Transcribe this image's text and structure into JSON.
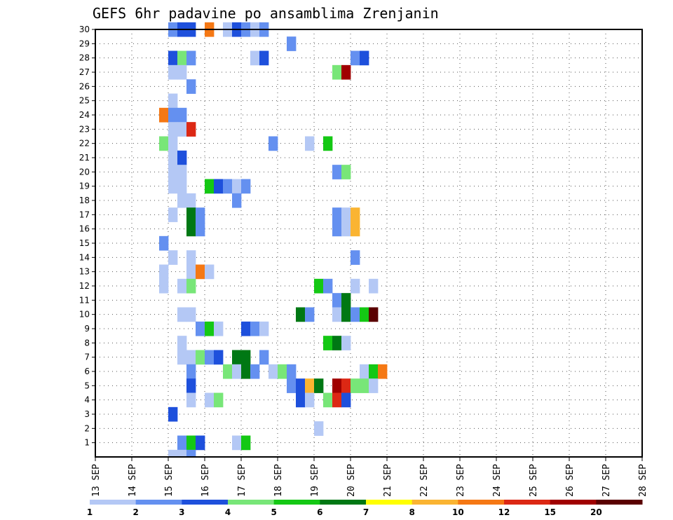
{
  "chart_data": {
    "type": "heatmap",
    "title": "GEFS 6hr padavine po ansamblima Zrenjanin",
    "xlabel": "",
    "ylabel": "",
    "x_ticks": [
      "13 SEP",
      "14 SEP",
      "15 SEP",
      "16 SEP",
      "17 SEP",
      "18 SEP",
      "19 SEP",
      "20 SEP",
      "21 SEP",
      "22 SEP",
      "23 SEP",
      "24 SEP",
      "25 SEP",
      "26 SEP",
      "27 SEP",
      "28 SEP"
    ],
    "y_ticks": [
      1,
      2,
      3,
      4,
      5,
      6,
      7,
      8,
      9,
      10,
      11,
      12,
      13,
      14,
      15,
      16,
      17,
      18,
      19,
      20,
      21,
      22,
      23,
      24,
      25,
      26,
      27,
      28,
      29,
      30
    ],
    "x_range": [
      0,
      60
    ],
    "y_range": [
      0,
      30
    ],
    "grid": true,
    "legend": {
      "placement": "bottom",
      "thresholds": [
        "1",
        "2",
        "3",
        "4",
        "5",
        "6",
        "7",
        "8",
        "10",
        "12",
        "15",
        "20"
      ],
      "colors": [
        "#b4c8f5",
        "#6490f0",
        "#1e50dc",
        "#78e678",
        "#14c814",
        "#007814",
        "#ffff00",
        "#fab432",
        "#f57814",
        "#dc2814",
        "#a00000",
        "#5a0000"
      ]
    },
    "cells": [
      [
        30,
        8,
        2
      ],
      [
        30,
        9,
        3
      ],
      [
        30,
        10,
        3
      ],
      [
        30,
        12,
        10
      ],
      [
        30,
        14,
        1
      ],
      [
        30,
        15,
        3
      ],
      [
        30,
        16,
        2
      ],
      [
        30,
        17,
        1
      ],
      [
        30,
        18,
        2
      ],
      [
        29,
        21,
        2
      ],
      [
        28,
        8,
        3
      ],
      [
        28,
        9,
        4
      ],
      [
        28,
        10,
        2
      ],
      [
        28,
        17,
        1
      ],
      [
        28,
        18,
        3
      ],
      [
        28,
        28,
        2
      ],
      [
        28,
        29,
        3
      ],
      [
        27,
        8,
        1
      ],
      [
        27,
        9,
        1
      ],
      [
        27,
        26,
        4
      ],
      [
        27,
        27,
        15
      ],
      [
        26,
        10,
        2
      ],
      [
        25,
        8,
        1
      ],
      [
        24,
        7,
        10
      ],
      [
        24,
        8,
        2
      ],
      [
        24,
        9,
        2
      ],
      [
        23,
        8,
        1
      ],
      [
        23,
        9,
        1
      ],
      [
        23,
        10,
        12
      ],
      [
        22,
        7,
        4
      ],
      [
        22,
        8,
        1
      ],
      [
        22,
        19,
        2
      ],
      [
        22,
        23,
        1
      ],
      [
        22,
        25,
        5
      ],
      [
        21,
        8,
        1
      ],
      [
        21,
        9,
        3
      ],
      [
        20,
        8,
        1
      ],
      [
        20,
        9,
        1
      ],
      [
        20,
        26,
        2
      ],
      [
        20,
        27,
        4
      ],
      [
        19,
        8,
        1
      ],
      [
        19,
        9,
        1
      ],
      [
        19,
        12,
        5
      ],
      [
        19,
        13,
        3
      ],
      [
        19,
        14,
        2
      ],
      [
        19,
        15,
        1
      ],
      [
        19,
        16,
        2
      ],
      [
        18,
        9,
        1
      ],
      [
        18,
        10,
        1
      ],
      [
        18,
        15,
        2
      ],
      [
        17,
        8,
        1
      ],
      [
        17,
        10,
        6
      ],
      [
        17,
        11,
        2
      ],
      [
        17,
        26,
        2
      ],
      [
        17,
        27,
        1
      ],
      [
        17,
        28,
        8
      ],
      [
        16,
        10,
        6
      ],
      [
        16,
        11,
        2
      ],
      [
        16,
        26,
        2
      ],
      [
        16,
        27,
        1
      ],
      [
        16,
        28,
        8
      ],
      [
        15,
        7,
        2
      ],
      [
        14,
        8,
        1
      ],
      [
        14,
        10,
        1
      ],
      [
        14,
        28,
        2
      ],
      [
        13,
        7,
        1
      ],
      [
        13,
        10,
        1
      ],
      [
        13,
        11,
        10
      ],
      [
        13,
        12,
        1
      ],
      [
        12,
        7,
        1
      ],
      [
        12,
        9,
        1
      ],
      [
        12,
        10,
        4
      ],
      [
        12,
        24,
        5
      ],
      [
        12,
        25,
        2
      ],
      [
        12,
        28,
        1
      ],
      [
        12,
        30,
        1
      ],
      [
        11,
        26,
        2
      ],
      [
        11,
        27,
        6
      ],
      [
        10,
        9,
        1
      ],
      [
        10,
        10,
        1
      ],
      [
        10,
        22,
        6
      ],
      [
        10,
        23,
        2
      ],
      [
        10,
        26,
        1
      ],
      [
        10,
        27,
        6
      ],
      [
        10,
        28,
        2
      ],
      [
        10,
        29,
        5
      ],
      [
        10,
        30,
        20
      ],
      [
        9,
        11,
        2
      ],
      [
        9,
        12,
        5
      ],
      [
        9,
        13,
        1
      ],
      [
        9,
        16,
        3
      ],
      [
        9,
        17,
        2
      ],
      [
        9,
        18,
        1
      ],
      [
        8,
        9,
        1
      ],
      [
        8,
        25,
        5
      ],
      [
        8,
        26,
        6
      ],
      [
        8,
        27,
        1
      ],
      [
        7,
        9,
        1
      ],
      [
        7,
        10,
        1
      ],
      [
        7,
        11,
        4
      ],
      [
        7,
        12,
        2
      ],
      [
        7,
        13,
        3
      ],
      [
        7,
        15,
        6
      ],
      [
        7,
        16,
        6
      ],
      [
        7,
        18,
        2
      ],
      [
        6,
        10,
        2
      ],
      [
        6,
        14,
        4
      ],
      [
        6,
        15,
        1
      ],
      [
        6,
        16,
        6
      ],
      [
        6,
        17,
        2
      ],
      [
        6,
        19,
        1
      ],
      [
        6,
        20,
        4
      ],
      [
        6,
        21,
        2
      ],
      [
        6,
        29,
        1
      ],
      [
        6,
        30,
        5
      ],
      [
        6,
        31,
        10
      ],
      [
        5,
        10,
        3
      ],
      [
        5,
        21,
        2
      ],
      [
        5,
        22,
        3
      ],
      [
        5,
        23,
        8
      ],
      [
        5,
        24,
        6
      ],
      [
        5,
        26,
        15
      ],
      [
        5,
        27,
        12
      ],
      [
        5,
        28,
        4
      ],
      [
        5,
        29,
        4
      ],
      [
        5,
        30,
        1
      ],
      [
        4,
        10,
        1
      ],
      [
        4,
        12,
        1
      ],
      [
        4,
        13,
        4
      ],
      [
        4,
        22,
        3
      ],
      [
        4,
        23,
        1
      ],
      [
        4,
        25,
        4
      ],
      [
        4,
        26,
        12
      ],
      [
        4,
        27,
        3
      ],
      [
        3,
        8,
        3
      ],
      [
        2,
        24,
        1
      ],
      [
        1,
        9,
        2
      ],
      [
        1,
        10,
        5
      ],
      [
        1,
        11,
        3
      ],
      [
        1,
        15,
        1
      ],
      [
        1,
        16,
        5
      ],
      [
        0,
        8,
        1
      ],
      [
        0,
        9,
        1
      ],
      [
        0,
        10,
        2
      ]
    ]
  }
}
